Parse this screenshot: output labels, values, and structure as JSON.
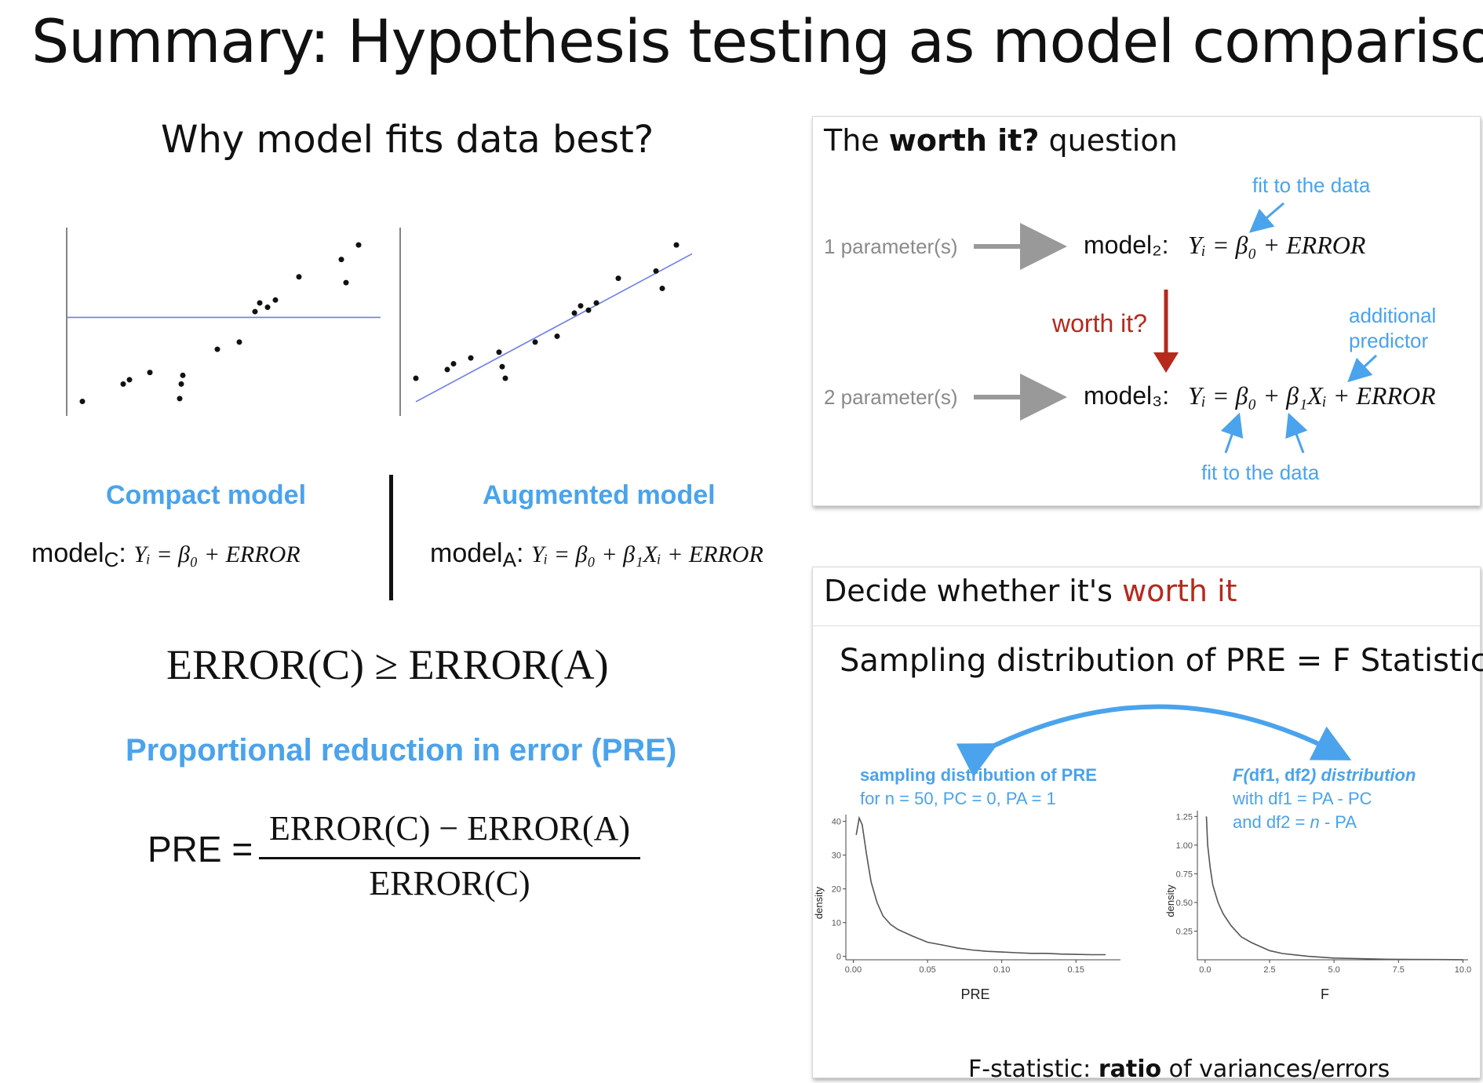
{
  "title": "Summary: Hypothesis testing as model comparison",
  "left": {
    "question": "Why model fits data best?",
    "compact_label": "Compact model",
    "augmented_label": "Augmented model",
    "model_c": {
      "name": "model",
      "sub": "C",
      "eq": "Yᵢ = β₀ + ERROR"
    },
    "model_a": {
      "name": "model",
      "sub": "A",
      "eq": "Yᵢ = β₀ + β₁Xᵢ + ERROR"
    },
    "inequality": "ERROR(C) ≥ ERROR(A)",
    "pre_label": "Proportional reduction in error (PRE)",
    "pre_lhs": "PRE =",
    "pre_num": "ERROR(C) − ERROR(A)",
    "pre_den": "ERROR(C)"
  },
  "worth_panel": {
    "title_pre": "The ",
    "title_bold": "worth it?",
    "title_post": " question",
    "param1": "1 parameter(s)",
    "param2": "2 parameter(s)",
    "model2": "model₂:",
    "model2_eq": "Yᵢ = β₀ + ERROR",
    "model3": "model₃:",
    "model3_eq": "Yᵢ = β₀ + β₁Xᵢ + ERROR",
    "fit_top": "fit to the data",
    "fit_bottom": "fit to the data",
    "worth_q": "worth it?",
    "additional_1": "additional",
    "additional_2": "predictor"
  },
  "decide_panel": {
    "title_pre": "Decide whether it's ",
    "title_red": "worth it",
    "subtitle": "Sampling distribution of PRE = F Statistic",
    "left_label_1": "sampling distribution of PRE",
    "left_label_2": "for n = 50, PC = 0, PA = 1",
    "right_label_1a": "F(",
    "right_label_1b": "df1, df2",
    "right_label_1c": ") distribution",
    "right_label_2": "with df1 = PA - PC",
    "right_label_3a": "and df2 = ",
    "right_label_3b": "n",
    "right_label_3c": " - PA",
    "footer_pre": "F-statistic: ",
    "footer_bold": "ratio",
    "footer_post": " of variances/errors"
  },
  "chart_data": [
    {
      "type": "scatter",
      "name_note": "compact",
      "x": [
        1,
        3.6,
        4.0,
        5.3,
        7.2,
        7.3,
        7.4,
        9.6,
        11.0,
        12.0,
        12.3,
        12.8,
        13.3,
        14.8,
        17.5,
        17.8,
        18.6
      ],
      "y": [
        1,
        2.2,
        2.5,
        3.0,
        1.2,
        2.2,
        2.8,
        4.6,
        5.1,
        7.2,
        7.8,
        7.5,
        8.0,
        9.6,
        10.8,
        9.2,
        11.8
      ],
      "hline": 6.8,
      "xlim": [
        0,
        20
      ],
      "ylim": [
        0,
        13
      ]
    },
    {
      "type": "scatter",
      "name_note": "augmented",
      "x": [
        1,
        3.0,
        3.4,
        4.5,
        6.3,
        6.5,
        6.7,
        8.6,
        10.0,
        11.1,
        11.5,
        12.0,
        12.5,
        13.9,
        16.3,
        16.7,
        17.6
      ],
      "y": [
        2.6,
        3.2,
        3.6,
        4.0,
        4.4,
        3.4,
        2.6,
        5.1,
        5.5,
        7.1,
        7.6,
        7.3,
        7.8,
        9.5,
        10.0,
        8.8,
        11.8
      ],
      "line": {
        "intercept": 1.0,
        "slope": 0.58
      },
      "xlim": [
        0,
        20
      ],
      "ylim": [
        0,
        13
      ]
    },
    {
      "type": "line",
      "xlabel": "PRE",
      "ylabel": "density",
      "xticks": [
        "0.00",
        "0.05",
        "0.10",
        "0.15"
      ],
      "yticks": [
        "0",
        "10",
        "20",
        "30",
        "40"
      ],
      "xlim": [
        -0.005,
        0.18
      ],
      "ylim": [
        -1,
        42
      ],
      "x": [
        0.002,
        0.004,
        0.006,
        0.009,
        0.012,
        0.016,
        0.02,
        0.025,
        0.03,
        0.04,
        0.05,
        0.06,
        0.07,
        0.08,
        0.09,
        0.1,
        0.11,
        0.12,
        0.13,
        0.14,
        0.15,
        0.16,
        0.17
      ],
      "y": [
        36,
        41,
        39,
        30,
        22,
        16,
        12,
        9.5,
        8,
        6,
        4.2,
        3.4,
        2.5,
        1.9,
        1.5,
        1.3,
        1.1,
        0.9,
        0.9,
        0.7,
        0.6,
        0.5,
        0.5
      ]
    },
    {
      "type": "line",
      "xlabel": "F",
      "ylabel": "density",
      "xticks": [
        "0.0",
        "2.5",
        "5.0",
        "7.5",
        "10.0"
      ],
      "yticks": [
        "0.25",
        "0.50",
        "0.75",
        "1.00",
        "1.25"
      ],
      "xlim": [
        -0.3,
        10.2
      ],
      "ylim": [
        0,
        1.3
      ],
      "x": [
        0.05,
        0.1,
        0.2,
        0.3,
        0.5,
        0.7,
        1.0,
        1.4,
        1.8,
        2.5,
        3.0,
        4.0,
        5.0,
        6.0,
        7.0,
        8.0,
        9.0,
        10.0
      ],
      "y": [
        1.25,
        1.0,
        0.8,
        0.65,
        0.5,
        0.4,
        0.3,
        0.2,
        0.15,
        0.08,
        0.055,
        0.03,
        0.015,
        0.01,
        0.005,
        0.003,
        0.002,
        0.001
      ]
    }
  ]
}
